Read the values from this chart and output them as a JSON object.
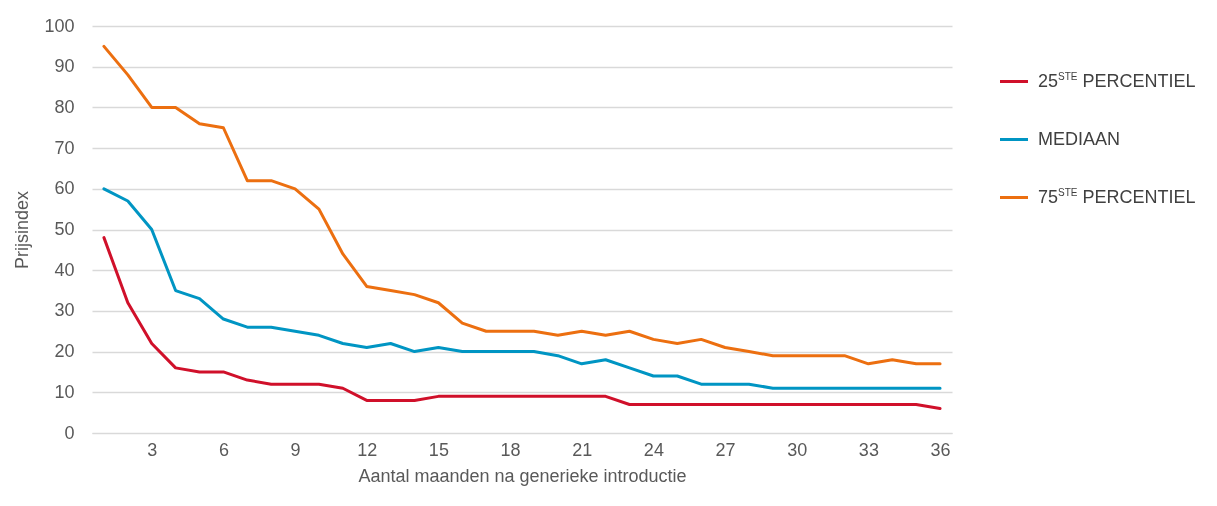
{
  "chart_data": {
    "type": "line",
    "xlabel": "Aantal maanden na generieke introductie",
    "ylabel": "Prijsindex",
    "x": [
      1,
      2,
      3,
      4,
      5,
      6,
      7,
      8,
      9,
      10,
      11,
      12,
      13,
      14,
      15,
      16,
      17,
      18,
      19,
      20,
      21,
      22,
      23,
      24,
      25,
      26,
      27,
      28,
      29,
      30,
      31,
      32,
      33,
      34,
      35,
      36
    ],
    "xlim": [
      0.5,
      36.5
    ],
    "xticks": [
      3,
      6,
      9,
      12,
      15,
      18,
      21,
      24,
      27,
      30,
      33,
      36
    ],
    "ylim": [
      0,
      100
    ],
    "yticks": [
      0,
      10,
      20,
      30,
      40,
      50,
      60,
      70,
      80,
      90,
      100
    ],
    "grid": "y",
    "legend": "right",
    "line_style": "solid",
    "series": [
      {
        "name": "25$^{STE}$ PERCENTIEL",
        "color": "#d0102a",
        "values": [
          48,
          32,
          22,
          16,
          15,
          15,
          13,
          12,
          12,
          12,
          11,
          8,
          8,
          8,
          9,
          9,
          9,
          9,
          9,
          9,
          9,
          9,
          7,
          7,
          7,
          7,
          7,
          7,
          7,
          7,
          7,
          7,
          7,
          7,
          7,
          6
        ]
      },
      {
        "name": "MEDIAAN",
        "color": "#0095c3",
        "values": [
          60,
          57,
          50,
          35,
          33,
          28,
          26,
          26,
          25,
          24,
          22,
          21,
          22,
          20,
          21,
          20,
          20,
          20,
          20,
          19,
          17,
          18,
          16,
          14,
          14,
          12,
          12,
          12,
          11,
          11,
          11,
          11,
          11,
          11,
          11,
          11
        ]
      },
      {
        "name": "75$^{STE}$ PERCENTIEL",
        "color": "#ec6f10",
        "values": [
          95,
          88,
          80,
          80,
          76,
          75,
          62,
          62,
          60,
          55,
          44,
          36,
          35,
          34,
          32,
          27,
          25,
          25,
          25,
          24,
          25,
          24,
          25,
          23,
          22,
          23,
          21,
          20,
          19,
          19,
          19,
          19,
          17,
          18,
          17,
          17
        ]
      }
    ]
  }
}
